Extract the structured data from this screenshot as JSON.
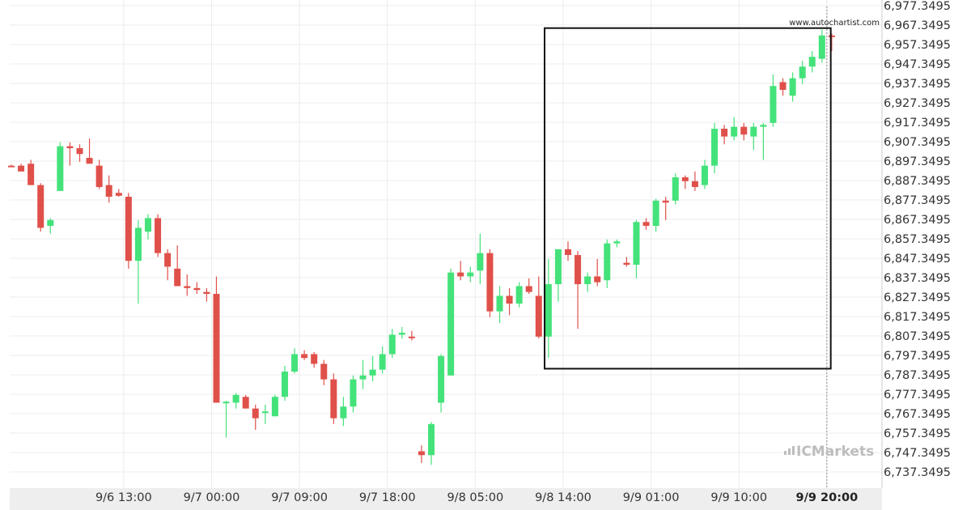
{
  "watermark_text": "www.autochartist.com",
  "brand_text": "ICMarkets",
  "colors": {
    "up": "#44e27a",
    "down": "#e0504a",
    "grid": "#ececec",
    "axis_band": "#eeeeee",
    "box": "#111111"
  },
  "chart_data": {
    "type": "candlestick",
    "y_axis_position": "right",
    "ylim": [
      6729.3495,
      6977.3495
    ],
    "y_ticks": [
      "6,737.3495",
      "6,747.3495",
      "6,757.3495",
      "6,767.3495",
      "6,777.3495",
      "6,787.3495",
      "6,797.3495",
      "6,807.3495",
      "6,817.3495",
      "6,827.3495",
      "6,837.3495",
      "6,847.3495",
      "6,857.3495",
      "6,867.3495",
      "6,877.3495",
      "6,887.3495",
      "6,897.3495",
      "6,907.3495",
      "6,917.3495",
      "6,927.3495",
      "6,937.3495",
      "6,947.3495",
      "6,957.3495",
      "6,967.3495",
      "6,977.3495"
    ],
    "x_ticks": [
      {
        "label": "9/6 13:00",
        "index": 11.5
      },
      {
        "label": "9/7 00:00",
        "index": 20.5
      },
      {
        "label": "9/7 09:00",
        "index": 29.5
      },
      {
        "label": "9/7 18:00",
        "index": 38.5
      },
      {
        "label": "9/8 05:00",
        "index": 47.5
      },
      {
        "label": "9/8 14:00",
        "index": 56.5
      },
      {
        "label": "9/9 01:00",
        "index": 65.5
      },
      {
        "label": "9/9 10:00",
        "index": 74.5
      },
      {
        "label": "9/9 20:00",
        "index": 83.5,
        "current": true
      }
    ],
    "highlight_box": {
      "index_start": 54.6,
      "index_end": 83.9,
      "price_low": 6790.5,
      "price_high": 6965.8
    },
    "candles": [
      [
        6895.0,
        6895.5,
        6894.5,
        6894.8
      ],
      [
        6895.0,
        6896.0,
        6893.0,
        6892.0
      ],
      [
        6896.0,
        6898.0,
        6885.0,
        6885.0
      ],
      [
        6885.0,
        6886.0,
        6861.0,
        6863.0
      ],
      [
        6864.0,
        6868.0,
        6860.0,
        6867.0
      ],
      [
        6882.0,
        6907.0,
        6882.0,
        6905.0
      ],
      [
        6905.0,
        6907.0,
        6895.0,
        6904.0
      ],
      [
        6904.0,
        6906.0,
        6897.0,
        6901.0
      ],
      [
        6899.0,
        6909.0,
        6896.0,
        6896.0
      ],
      [
        6895.0,
        6898.0,
        6883.0,
        6884.0
      ],
      [
        6885.0,
        6890.0,
        6876.0,
        6879.0
      ],
      [
        6881.0,
        6883.0,
        6879.0,
        6879.5
      ],
      [
        6879.0,
        6881.0,
        6842.0,
        6846.0
      ],
      [
        6846.0,
        6867.0,
        6824.0,
        6863.0
      ],
      [
        6861.0,
        6870.0,
        6857.0,
        6868.0
      ],
      [
        6868.0,
        6870.0,
        6848.0,
        6850.0
      ],
      [
        6850.0,
        6852.0,
        6836.0,
        6843.0
      ],
      [
        6842.0,
        6854.0,
        6834.0,
        6833.0
      ],
      [
        6833.0,
        6839.0,
        6828.0,
        6832.0
      ],
      [
        6832.0,
        6835.0,
        6829.0,
        6831.0
      ],
      [
        6830.0,
        6832.0,
        6825.0,
        6829.0
      ],
      [
        6829.0,
        6838.0,
        6773.0,
        6773.0
      ],
      [
        6773.0,
        6774.0,
        6755.0,
        6773.5
      ],
      [
        6773.0,
        6778.0,
        6770.0,
        6777.0
      ],
      [
        6776.0,
        6777.0,
        6770.0,
        6770.0
      ],
      [
        6770.0,
        6772.0,
        6759.0,
        6765.0
      ],
      [
        6768.0,
        6772.0,
        6762.0,
        6768.5
      ],
      [
        6766.0,
        6777.0,
        6766.0,
        6776.0
      ],
      [
        6776.0,
        6792.0,
        6774.0,
        6789.0
      ],
      [
        6789.0,
        6801.0,
        6788.0,
        6798.0
      ],
      [
        6798.0,
        6800.0,
        6795.0,
        6796.0
      ],
      [
        6798.0,
        6799.0,
        6791.0,
        6793.0
      ],
      [
        6793.0,
        6795.0,
        6782.0,
        6785.0
      ],
      [
        6785.0,
        6788.0,
        6762.0,
        6765.0
      ],
      [
        6765.0,
        6776.0,
        6761.0,
        6771.0
      ],
      [
        6771.0,
        6787.0,
        6768.0,
        6785.0
      ],
      [
        6785.0,
        6795.0,
        6780.0,
        6787.0
      ],
      [
        6787.0,
        6797.0,
        6784.0,
        6790.0
      ],
      [
        6790.0,
        6802.0,
        6788.0,
        6798.0
      ],
      [
        6798.0,
        6811.0,
        6796.0,
        6808.0
      ],
      [
        6808.0,
        6812.0,
        6806.0,
        6809.0
      ],
      [
        6807.0,
        6810.0,
        6805.0,
        6806.5
      ],
      [
        6748.0,
        6751.0,
        6742.0,
        6746.0
      ],
      [
        6746.0,
        6763.0,
        6741.0,
        6762.0
      ],
      [
        6773.0,
        6798.0,
        6768.0,
        6797.0
      ],
      [
        6787.0,
        6842.0,
        6787.0,
        6840.0
      ],
      [
        6840.0,
        6846.0,
        6836.0,
        6838.0
      ],
      [
        6838.0,
        6843.0,
        6835.0,
        6840.0
      ],
      [
        6841.0,
        6860.0,
        6834.0,
        6850.0
      ],
      [
        6850.0,
        6852.0,
        6817.0,
        6820.0
      ],
      [
        6820.0,
        6833.0,
        6814.0,
        6828.0
      ],
      [
        6828.0,
        6832.0,
        6818.0,
        6824.0
      ],
      [
        6824.0,
        6835.0,
        6822.0,
        6833.0
      ],
      [
        6833.0,
        6837.0,
        6829.0,
        6830.0
      ],
      [
        6828.0,
        6838.0,
        6806.0,
        6807.0
      ],
      [
        6807.0,
        6847.0,
        6796.0,
        6834.0
      ],
      [
        6834.0,
        6852.0,
        6825.0,
        6852.0
      ],
      [
        6852.0,
        6856.0,
        6846.0,
        6849.0
      ],
      [
        6849.0,
        6851.0,
        6811.0,
        6834.0
      ],
      [
        6834.0,
        6840.0,
        6830.0,
        6838.0
      ],
      [
        6838.0,
        6847.0,
        6833.0,
        6835.0
      ],
      [
        6836.0,
        6857.0,
        6832.0,
        6855.0
      ],
      [
        6855.0,
        6857.0,
        6853.0,
        6856.0
      ],
      [
        6845.0,
        6848.0,
        6843.0,
        6844.0
      ],
      [
        6844.0,
        6867.0,
        6837.0,
        6866.0
      ],
      [
        6866.0,
        6868.0,
        6862.0,
        6864.0
      ],
      [
        6864.0,
        6878.0,
        6861.0,
        6877.0
      ],
      [
        6877.0,
        6879.0,
        6867.0,
        6876.0
      ],
      [
        6877.0,
        6891.0,
        6875.0,
        6889.0
      ],
      [
        6889.0,
        6890.0,
        6883.0,
        6887.0
      ],
      [
        6887.0,
        6892.0,
        6882.0,
        6884.0
      ],
      [
        6885.0,
        6898.0,
        6883.0,
        6895.0
      ],
      [
        6895.0,
        6917.0,
        6891.0,
        6914.0
      ],
      [
        6914.0,
        6916.0,
        6906.0,
        6910.0
      ],
      [
        6910.0,
        6920.0,
        6908.0,
        6915.0
      ],
      [
        6915.0,
        6917.0,
        6908.0,
        6911.0
      ],
      [
        6910.0,
        6917.0,
        6903.0,
        6915.0
      ],
      [
        6915.0,
        6917.0,
        6898.0,
        6916.0
      ],
      [
        6917.0,
        6942.0,
        6915.0,
        6936.0
      ],
      [
        6938.0,
        6940.0,
        6931.0,
        6934.0
      ],
      [
        6931.0,
        6943.0,
        6928.0,
        6940.0
      ],
      [
        6940.0,
        6949.0,
        6937.0,
        6946.0
      ],
      [
        6946.0,
        6954.0,
        6943.0,
        6951.0
      ],
      [
        6950.0,
        6965.0,
        6948.0,
        6962.0
      ],
      [
        6962.0,
        6963.0,
        6954.0,
        6961.5
      ]
    ]
  }
}
